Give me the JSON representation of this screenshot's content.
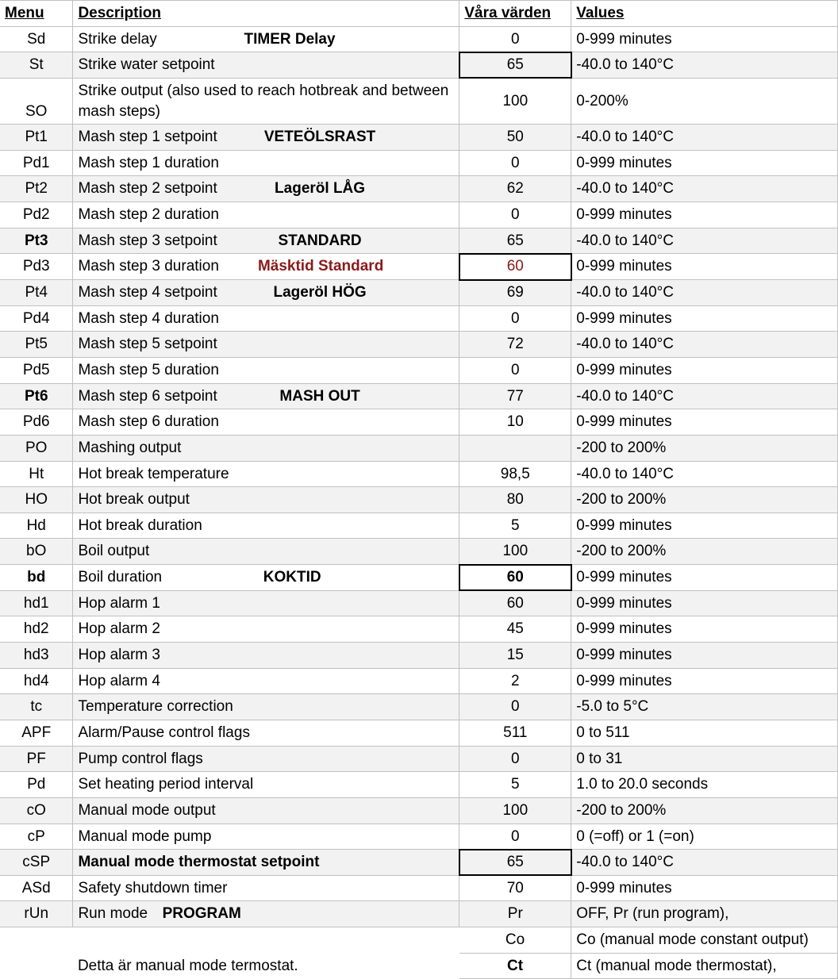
{
  "headers": {
    "menu": "Menu",
    "description": "Description",
    "varde": "Våra värden",
    "values": "Values"
  },
  "rows": [
    {
      "menu": "Sd",
      "desc": "Strike delay",
      "extra": "TIMER Delay",
      "extraBold": true,
      "varde": "0",
      "values": "0-999 minutes",
      "shade": false
    },
    {
      "menu": "St",
      "desc": "Strike water setpoint",
      "varde": "65",
      "values": "-40.0 to 140°C",
      "shade": true,
      "box": true
    },
    {
      "menu": "SO",
      "desc": "Strike output (also used to reach hotbreak and between mash steps)",
      "varde": "100",
      "values": "0-200%",
      "shade": false,
      "tall": true
    },
    {
      "menu": "Pt1",
      "desc": "Mash step 1 setpoint",
      "extra": "VETEÖLSRAST",
      "extraBold": true,
      "varde": "50",
      "values": "-40.0 to 140°C",
      "shade": true
    },
    {
      "menu": "Pd1",
      "desc": "Mash step 1 duration",
      "varde": "0",
      "values": "0-999 minutes",
      "shade": false
    },
    {
      "menu": "Pt2",
      "desc": "Mash step 2 setpoint",
      "extra": "Lageröl LÅG",
      "extraBold": true,
      "varde": "62",
      "values": "-40.0 to 140°C",
      "shade": true
    },
    {
      "menu": "Pd2",
      "desc": "Mash step 2 duration",
      "varde": "0",
      "values": "0-999 minutes",
      "shade": false
    },
    {
      "menu": "Pt3",
      "menuBold": true,
      "desc": "Mash step 3 setpoint",
      "extra": "STANDARD",
      "extraBold": true,
      "varde": "65",
      "values": "-40.0 to 140°C",
      "shade": true
    },
    {
      "menu": "Pd3",
      "desc": "Mash step 3 duration",
      "extra": "Mäsktid Standard",
      "extraBold": true,
      "extraRed": true,
      "varde": "60",
      "vardeRed": true,
      "values": "0-999 minutes",
      "shade": false,
      "box": true
    },
    {
      "menu": "Pt4",
      "desc": "Mash step 4 setpoint",
      "extra": "Lageröl HÖG",
      "extraBold": true,
      "varde": "69",
      "values": "-40.0 to 140°C",
      "shade": true
    },
    {
      "menu": "Pd4",
      "desc": "Mash step 4 duration",
      "varde": "0",
      "values": "0-999 minutes",
      "shade": false
    },
    {
      "menu": "Pt5",
      "desc": "Mash step 5 setpoint",
      "varde": "72",
      "values": "-40.0 to 140°C",
      "shade": true
    },
    {
      "menu": "Pd5",
      "desc": "Mash step 5 duration",
      "varde": "0",
      "values": "0-999 minutes",
      "shade": false
    },
    {
      "menu": "Pt6",
      "menuBold": true,
      "desc": "Mash step 6 setpoint",
      "extra": "MASH OUT",
      "extraBold": true,
      "varde": "77",
      "values": "-40.0 to 140°C",
      "shade": true
    },
    {
      "menu": "Pd6",
      "desc": "Mash step 6 duration",
      "varde": "10",
      "values": "0-999 minutes",
      "shade": false
    },
    {
      "menu": "PO",
      "desc": "Mashing output",
      "varde": "",
      "values": "-200 to 200%",
      "shade": true
    },
    {
      "menu": "Ht",
      "desc": "Hot break temperature",
      "varde": "98,5",
      "values": "-40.0 to 140°C",
      "shade": false
    },
    {
      "menu": "HO",
      "desc": "Hot break output",
      "varde": "80",
      "values": "-200 to 200%",
      "shade": true
    },
    {
      "menu": "Hd",
      "desc": "Hot break duration",
      "varde": "5",
      "values": "0-999 minutes",
      "shade": false
    },
    {
      "menu": "bO",
      "desc": "Boil output",
      "varde": "100",
      "values": "-200 to 200%",
      "shade": true
    },
    {
      "menu": "bd",
      "menuBold": true,
      "desc": "Boil duration",
      "extra": "KOKTID",
      "extraBold": true,
      "varde": "60",
      "vardeBold": true,
      "values": "0-999 minutes",
      "shade": false,
      "box": true
    },
    {
      "menu": "hd1",
      "desc": "Hop alarm 1",
      "varde": "60",
      "values": "0-999 minutes",
      "shade": true
    },
    {
      "menu": "hd2",
      "desc": "Hop alarm 2",
      "varde": "45",
      "values": "0-999 minutes",
      "shade": false
    },
    {
      "menu": "hd3",
      "desc": "Hop alarm 3",
      "varde": "15",
      "values": "0-999 minutes",
      "shade": true
    },
    {
      "menu": "hd4",
      "desc": "Hop alarm 4",
      "varde": "2",
      "values": "0-999 minutes",
      "shade": false
    },
    {
      "menu": "tc",
      "desc": "Temperature correction",
      "varde": "0",
      "values": "-5.0 to 5°C",
      "shade": true
    },
    {
      "menu": "APF",
      "desc": "Alarm/Pause control flags",
      "varde": "511",
      "values": "0 to 511",
      "shade": false
    },
    {
      "menu": "PF",
      "desc": "Pump control flags",
      "varde": "0",
      "values": "0 to 31",
      "shade": true
    },
    {
      "menu": "Pd",
      "desc": "Set heating period interval",
      "varde": "5",
      "values": "1.0 to 20.0 seconds",
      "shade": false
    },
    {
      "menu": "cO",
      "desc": "Manual mode output",
      "varde": "100",
      "values": "-200 to 200%",
      "shade": true
    },
    {
      "menu": "cP",
      "desc": "Manual mode pump",
      "varde": "0",
      "values": "0 (=off) or 1 (=on)",
      "shade": false
    },
    {
      "menu": "cSP",
      "desc": "Manual mode thermostat setpoint",
      "descBold": true,
      "varde": "65",
      "values": "-40.0 to 140°C",
      "shade": true,
      "box": true
    },
    {
      "menu": "ASd",
      "desc": "Safety shutdown timer",
      "varde": "70",
      "values": "0-999 minutes",
      "shade": false
    },
    {
      "menu": "rUn",
      "desc": "Run mode",
      "extra": "PROGRAM",
      "extraBold": true,
      "extraNarrow": true,
      "varde": "Pr",
      "values": "OFF, Pr (run program),",
      "shade": true
    }
  ],
  "footer": [
    {
      "desc": "",
      "varde": "Co",
      "values": "Co (manual mode constant output)"
    },
    {
      "desc": "Detta är manual mode termostat.",
      "varde": "Ct",
      "vardeBold": true,
      "values": "Ct (manual mode thermostat),"
    }
  ]
}
